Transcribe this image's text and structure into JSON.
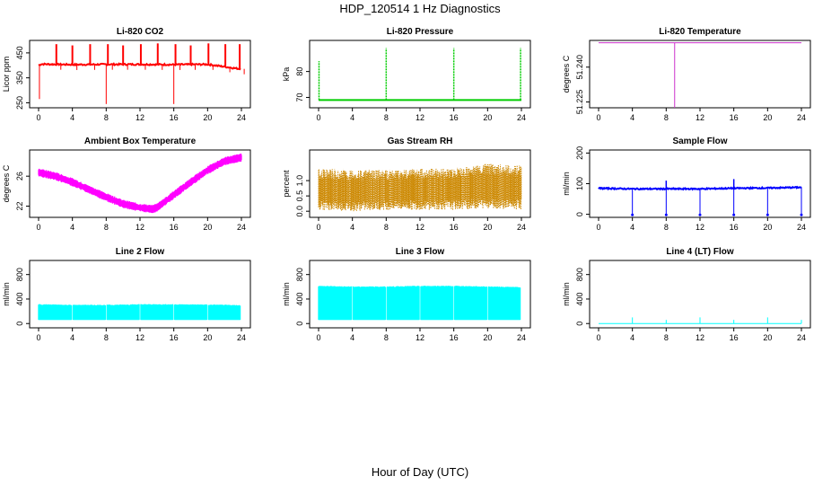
{
  "figure": {
    "title": "HDP_120514  1 Hz Diagnostics",
    "xlabel": "Hour of Day (UTC)"
  },
  "chart_data": [
    {
      "type": "line",
      "title": "Li-820 CO2",
      "ylabel": "Licor ppm",
      "color": "#ff0000",
      "xlim": [
        0,
        24
      ],
      "ylim": [
        230,
        500
      ],
      "xticks": [
        0,
        4,
        8,
        12,
        16,
        20,
        24
      ],
      "yticks": [
        250,
        350,
        450
      ],
      "series": [
        {
          "name": "baseline",
          "x": [
            0,
            0.3,
            4,
            8,
            12,
            16,
            20,
            24
          ],
          "values": [
            400,
            405,
            403,
            404,
            404,
            403,
            404,
            385
          ]
        },
        {
          "name": "spikes",
          "x": [
            2.1,
            4.0,
            6.1,
            8.2,
            10.0,
            12.1,
            14.1,
            16.2,
            18.0,
            20.1,
            22.1,
            23.8
          ],
          "values": [
            485,
            480,
            485,
            485,
            480,
            485,
            488,
            485,
            480,
            488,
            485,
            485
          ]
        },
        {
          "name": "dips",
          "x": [
            0.1,
            8.0,
            16.0
          ],
          "values": [
            265,
            245,
            245
          ]
        }
      ]
    },
    {
      "type": "line",
      "title": "Li-820 Pressure",
      "ylabel": "kPa",
      "color": "#00cc00",
      "xlim": [
        0,
        24
      ],
      "ylim": [
        66,
        92
      ],
      "xticks": [
        0,
        4,
        8,
        12,
        16,
        20,
        24
      ],
      "yticks": [
        70,
        80
      ],
      "series": [
        {
          "name": "baseline",
          "x": [
            0,
            24
          ],
          "values": [
            69,
            69
          ]
        },
        {
          "name": "spikes",
          "x": [
            0.05,
            8.0,
            16.0,
            23.9
          ],
          "values": [
            84,
            89,
            89,
            89
          ]
        }
      ]
    },
    {
      "type": "line",
      "title": "Li-820 Temperature",
      "ylabel": "degrees C",
      "color": "#cc33cc",
      "xlim": [
        0,
        24
      ],
      "ylim": [
        51.2225,
        51.2515
      ],
      "xticks": [
        0,
        4,
        8,
        12,
        16,
        20,
        24
      ],
      "yticks": [
        51.225,
        51.24
      ],
      "ytick_labels": [
        "51.225",
        "51.240"
      ],
      "series": [
        {
          "name": "baseline",
          "x": [
            0,
            24
          ],
          "values": [
            51.2505,
            51.2505
          ]
        },
        {
          "name": "dip",
          "x": [
            9.0
          ],
          "values": [
            51.2225
          ]
        }
      ]
    },
    {
      "type": "line",
      "title": "Ambient Box Temperature",
      "ylabel": "degrees C",
      "color": "#ff00ff",
      "xlim": [
        0,
        24
      ],
      "ylim": [
        20.5,
        29.5
      ],
      "xticks": [
        0,
        4,
        8,
        12,
        16,
        20,
        24
      ],
      "yticks": [
        22,
        26
      ],
      "series": [
        {
          "name": "temperature",
          "x": [
            0,
            2,
            4,
            6,
            8,
            10,
            12,
            13.5,
            14,
            16,
            18,
            20,
            22,
            24
          ],
          "values": [
            26.5,
            26.0,
            25.2,
            24.2,
            23.2,
            22.3,
            21.8,
            21.6,
            21.8,
            23.5,
            25.2,
            26.8,
            28.0,
            28.5
          ]
        }
      ],
      "band": 0.5
    },
    {
      "type": "line",
      "title": "Gas Stream RH",
      "ylabel": "percent",
      "color": "#cc8800",
      "xlim": [
        0,
        24
      ],
      "ylim": [
        -0.2,
        2.0
      ],
      "xticks": [
        0,
        4,
        8,
        12,
        16,
        20,
        24
      ],
      "yticks": [
        0.0,
        0.5,
        1.0
      ],
      "ytick_labels": [
        "0.0",
        "0.5",
        "1.0"
      ],
      "series": [
        {
          "name": "rh_upper",
          "x": [
            0,
            4,
            8,
            12,
            16,
            20,
            24
          ],
          "values": [
            1.4,
            1.35,
            1.35,
            1.4,
            1.4,
            1.55,
            1.5
          ]
        },
        {
          "name": "rh_lower",
          "x": [
            0,
            4,
            8,
            12,
            16,
            20,
            24
          ],
          "values": [
            0.05,
            0.0,
            0.05,
            0.05,
            0.05,
            0.1,
            0.05
          ]
        }
      ]
    },
    {
      "type": "line",
      "title": "Sample Flow",
      "ylabel": "ml/min",
      "color": "#0000ff",
      "xlim": [
        0,
        24
      ],
      "ylim": [
        -10,
        210
      ],
      "xticks": [
        0,
        4,
        8,
        12,
        16,
        20,
        24
      ],
      "yticks": [
        0,
        100,
        200
      ],
      "series": [
        {
          "name": "flow",
          "x": [
            0,
            4,
            8,
            12,
            16,
            20,
            24
          ],
          "values": [
            85,
            83,
            83,
            83,
            85,
            86,
            88
          ]
        },
        {
          "name": "dips",
          "x": [
            4.0,
            8.0,
            12.0,
            16.0,
            20.0,
            24.0
          ],
          "values": [
            -2,
            -2,
            -2,
            -2,
            -2,
            -2
          ]
        },
        {
          "name": "spikes",
          "x": [
            8.0,
            16.0
          ],
          "values": [
            110,
            115
          ]
        }
      ]
    },
    {
      "type": "area",
      "title": "Line 2 Flow",
      "ylabel": "ml/min",
      "color": "#00ffff",
      "xlim": [
        0,
        24
      ],
      "ylim": [
        -70,
        1030
      ],
      "xticks": [
        0,
        4,
        8,
        12,
        16,
        20,
        24
      ],
      "yticks": [
        0,
        400,
        800
      ],
      "series": [
        {
          "name": "upper",
          "x": [
            0,
            4,
            8,
            12,
            16,
            20,
            24
          ],
          "values": [
            310,
            300,
            300,
            310,
            310,
            305,
            295
          ]
        },
        {
          "name": "lower",
          "x": [
            0,
            24
          ],
          "values": [
            60,
            60
          ]
        }
      ],
      "gaps": [
        4,
        8,
        12,
        16,
        20
      ]
    },
    {
      "type": "area",
      "title": "Line 3 Flow",
      "ylabel": "ml/min",
      "color": "#00ffff",
      "xlim": [
        0,
        24
      ],
      "ylim": [
        -70,
        1030
      ],
      "xticks": [
        0,
        4,
        8,
        12,
        16,
        20,
        24
      ],
      "yticks": [
        0,
        400,
        800
      ],
      "series": [
        {
          "name": "upper",
          "x": [
            0,
            4,
            8,
            12,
            16,
            20,
            24
          ],
          "values": [
            610,
            600,
            600,
            610,
            610,
            600,
            590
          ]
        },
        {
          "name": "lower",
          "x": [
            0,
            24
          ],
          "values": [
            60,
            60
          ]
        }
      ],
      "gaps": [
        4,
        8,
        12,
        16,
        20
      ]
    },
    {
      "type": "line",
      "title": "Line 4 (LT) Flow",
      "ylabel": "ml/min",
      "color": "#00ffff",
      "xlim": [
        0,
        24
      ],
      "ylim": [
        -70,
        1030
      ],
      "xticks": [
        0,
        4,
        8,
        12,
        16,
        20,
        24
      ],
      "yticks": [
        0,
        400,
        800
      ],
      "series": [
        {
          "name": "baseline",
          "x": [
            0,
            24
          ],
          "values": [
            0,
            0
          ]
        },
        {
          "name": "spikes",
          "x": [
            4.0,
            8.0,
            12.0,
            16.0,
            20.0,
            24.0
          ],
          "values": [
            100,
            60,
            100,
            60,
            100,
            60
          ]
        }
      ]
    }
  ]
}
